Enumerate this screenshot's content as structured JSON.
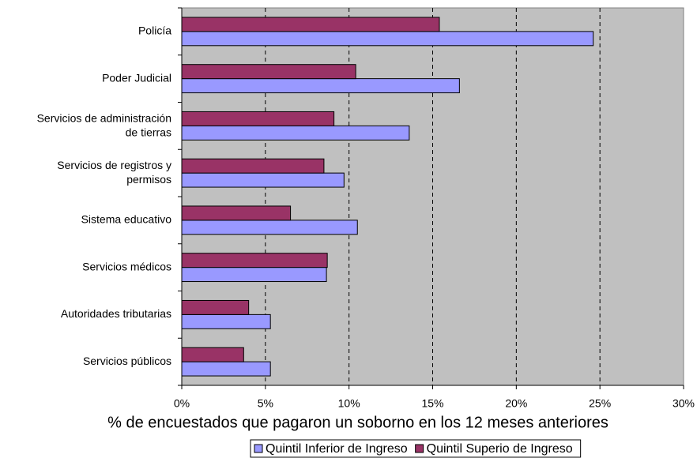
{
  "chart_data": {
    "type": "hbar",
    "xlabel": "% de encuestados que pagaron un soborno en los 12 meses anteriores",
    "categories": [
      "Policía",
      "Poder Judicial",
      "Servicios de administración\nde tierras",
      "Servicios de registros y\npermisos",
      "Sistema educativo",
      "Servicios médicos",
      "Autoridades tributarias",
      "Servicios públicos"
    ],
    "series": [
      {
        "name": "Quintil Inferior de Ingreso",
        "color": "#9999ff",
        "values": [
          24.6,
          16.6,
          13.6,
          9.7,
          10.5,
          8.65,
          5.3,
          5.3
        ]
      },
      {
        "name": "Quintil Superio de Ingreso",
        "color": "#993366",
        "values": [
          15.4,
          10.4,
          9.1,
          8.5,
          6.5,
          8.7,
          4.0,
          3.7
        ]
      }
    ],
    "xlim": [
      0,
      30
    ],
    "xticks": [
      {
        "value": 0,
        "label": "0%"
      },
      {
        "value": 5,
        "label": "5%"
      },
      {
        "value": 10,
        "label": "10%"
      },
      {
        "value": 15,
        "label": "15%"
      },
      {
        "value": 20,
        "label": "20%"
      },
      {
        "value": 25,
        "label": "25%"
      },
      {
        "value": 30,
        "label": "30%"
      }
    ],
    "grid": true,
    "legend": "bottom"
  }
}
